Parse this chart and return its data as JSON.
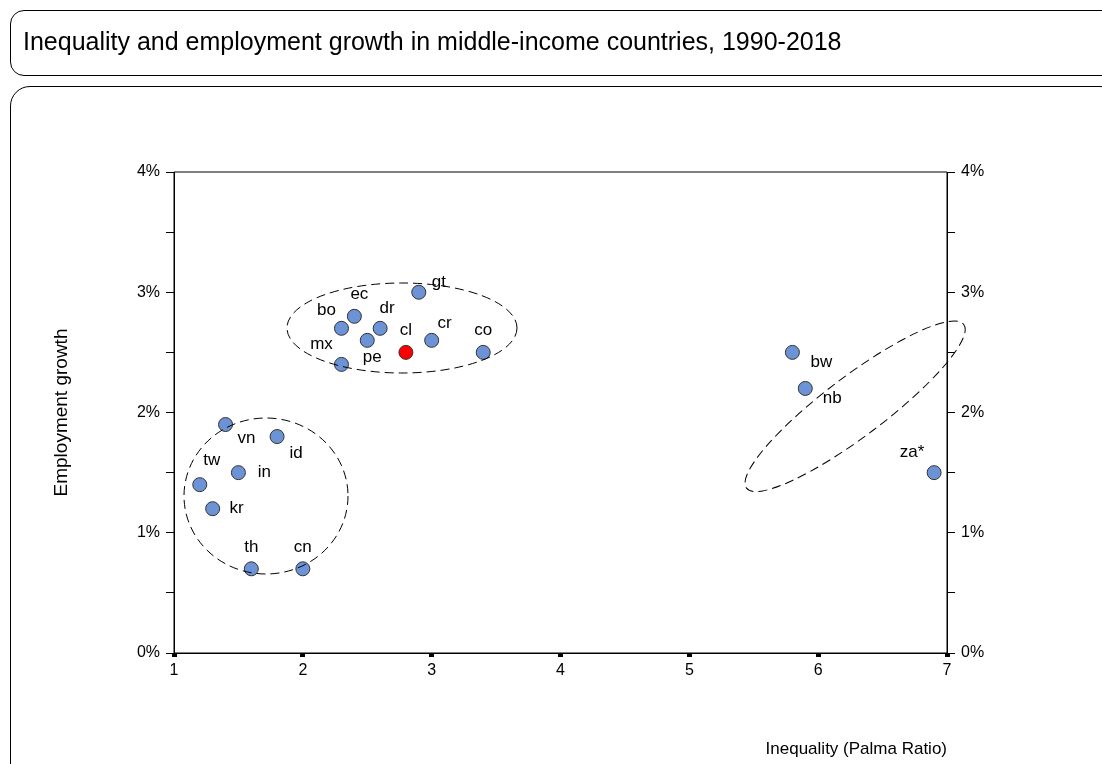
{
  "chart_data": {
    "type": "scatter",
    "title": "Inequality and employment growth in middle-income countries, 1990-2018",
    "xlabel": "Inequality (Palma Ratio)",
    "ylabel": "Employment growth",
    "xlim": [
      1,
      7
    ],
    "xticks": [
      1,
      2,
      3,
      4,
      5,
      6,
      7
    ],
    "ylim": [
      0,
      4
    ],
    "yticks": [
      {
        "value": 0,
        "label": "0%"
      },
      {
        "value": 0.5,
        "label": null
      },
      {
        "value": 1,
        "label": "1%"
      },
      {
        "value": 1.5,
        "label": null
      },
      {
        "value": 2,
        "label": "2%"
      },
      {
        "value": 2.5,
        "label": null
      },
      {
        "value": 3,
        "label": "3%"
      },
      {
        "value": 3.5,
        "label": null
      },
      {
        "value": 4,
        "label": "4%"
      }
    ],
    "y2lim": [
      0,
      4
    ],
    "y2ticks": [
      {
        "value": 0,
        "label": "0%"
      },
      {
        "value": 0.5,
        "label": null
      },
      {
        "value": 1,
        "label": "1%"
      },
      {
        "value": 1.5,
        "label": null
      },
      {
        "value": 2,
        "label": "2%"
      },
      {
        "value": 2.5,
        "label": null
      },
      {
        "value": 3,
        "label": "3%"
      },
      {
        "value": 3.5,
        "label": null
      },
      {
        "value": 4,
        "label": "4%"
      }
    ],
    "legend": false,
    "grid": false,
    "marker": "circle",
    "series": [
      {
        "name": "gt",
        "color": "#6b93d6",
        "x": [
          2.9
        ],
        "values": [
          3.0
        ]
      },
      {
        "name": "ec",
        "color": "#6b93d6",
        "x": [
          2.4
        ],
        "values": [
          2.8
        ]
      },
      {
        "name": "bo",
        "color": "#6b93d6",
        "x": [
          2.3
        ],
        "values": [
          2.7
        ]
      },
      {
        "name": "dr",
        "color": "#6b93d6",
        "x": [
          2.6
        ],
        "values": [
          2.7
        ]
      },
      {
        "name": "mx",
        "color": "#6b93d6",
        "x": [
          2.3
        ],
        "values": [
          2.4
        ]
      },
      {
        "name": "pe",
        "color": "#6b93d6",
        "x": [
          2.5
        ],
        "values": [
          2.6
        ]
      },
      {
        "name": "cl",
        "color": "#ff0000",
        "x": [
          2.8
        ],
        "values": [
          2.5
        ]
      },
      {
        "name": "cr",
        "color": "#6b93d6",
        "x": [
          3.0
        ],
        "values": [
          2.6
        ]
      },
      {
        "name": "co",
        "color": "#6b93d6",
        "x": [
          3.4
        ],
        "values": [
          2.5
        ]
      },
      {
        "name": "vn",
        "color": "#6b93d6",
        "x": [
          1.4
        ],
        "values": [
          1.9
        ]
      },
      {
        "name": "id",
        "color": "#6b93d6",
        "x": [
          1.8
        ],
        "values": [
          1.8
        ]
      },
      {
        "name": "tw",
        "color": "#6b93d6",
        "x": [
          1.2
        ],
        "values": [
          1.4
        ]
      },
      {
        "name": "in",
        "color": "#6b93d6",
        "x": [
          1.5
        ],
        "values": [
          1.5
        ]
      },
      {
        "name": "kr",
        "color": "#6b93d6",
        "x": [
          1.3
        ],
        "values": [
          1.2
        ]
      },
      {
        "name": "th",
        "color": "#6b93d6",
        "x": [
          1.6
        ],
        "values": [
          0.7
        ]
      },
      {
        "name": "cn",
        "color": "#6b93d6",
        "x": [
          2.0
        ],
        "values": [
          0.7
        ]
      },
      {
        "name": "bw",
        "color": "#6b93d6",
        "x": [
          5.8
        ],
        "values": [
          2.5
        ]
      },
      {
        "name": "nb",
        "color": "#6b93d6",
        "x": [
          5.9
        ],
        "values": [
          2.2
        ]
      },
      {
        "name": "za*",
        "color": "#6b93d6",
        "x": [
          6.9
        ],
        "values": [
          1.5
        ]
      }
    ]
  }
}
